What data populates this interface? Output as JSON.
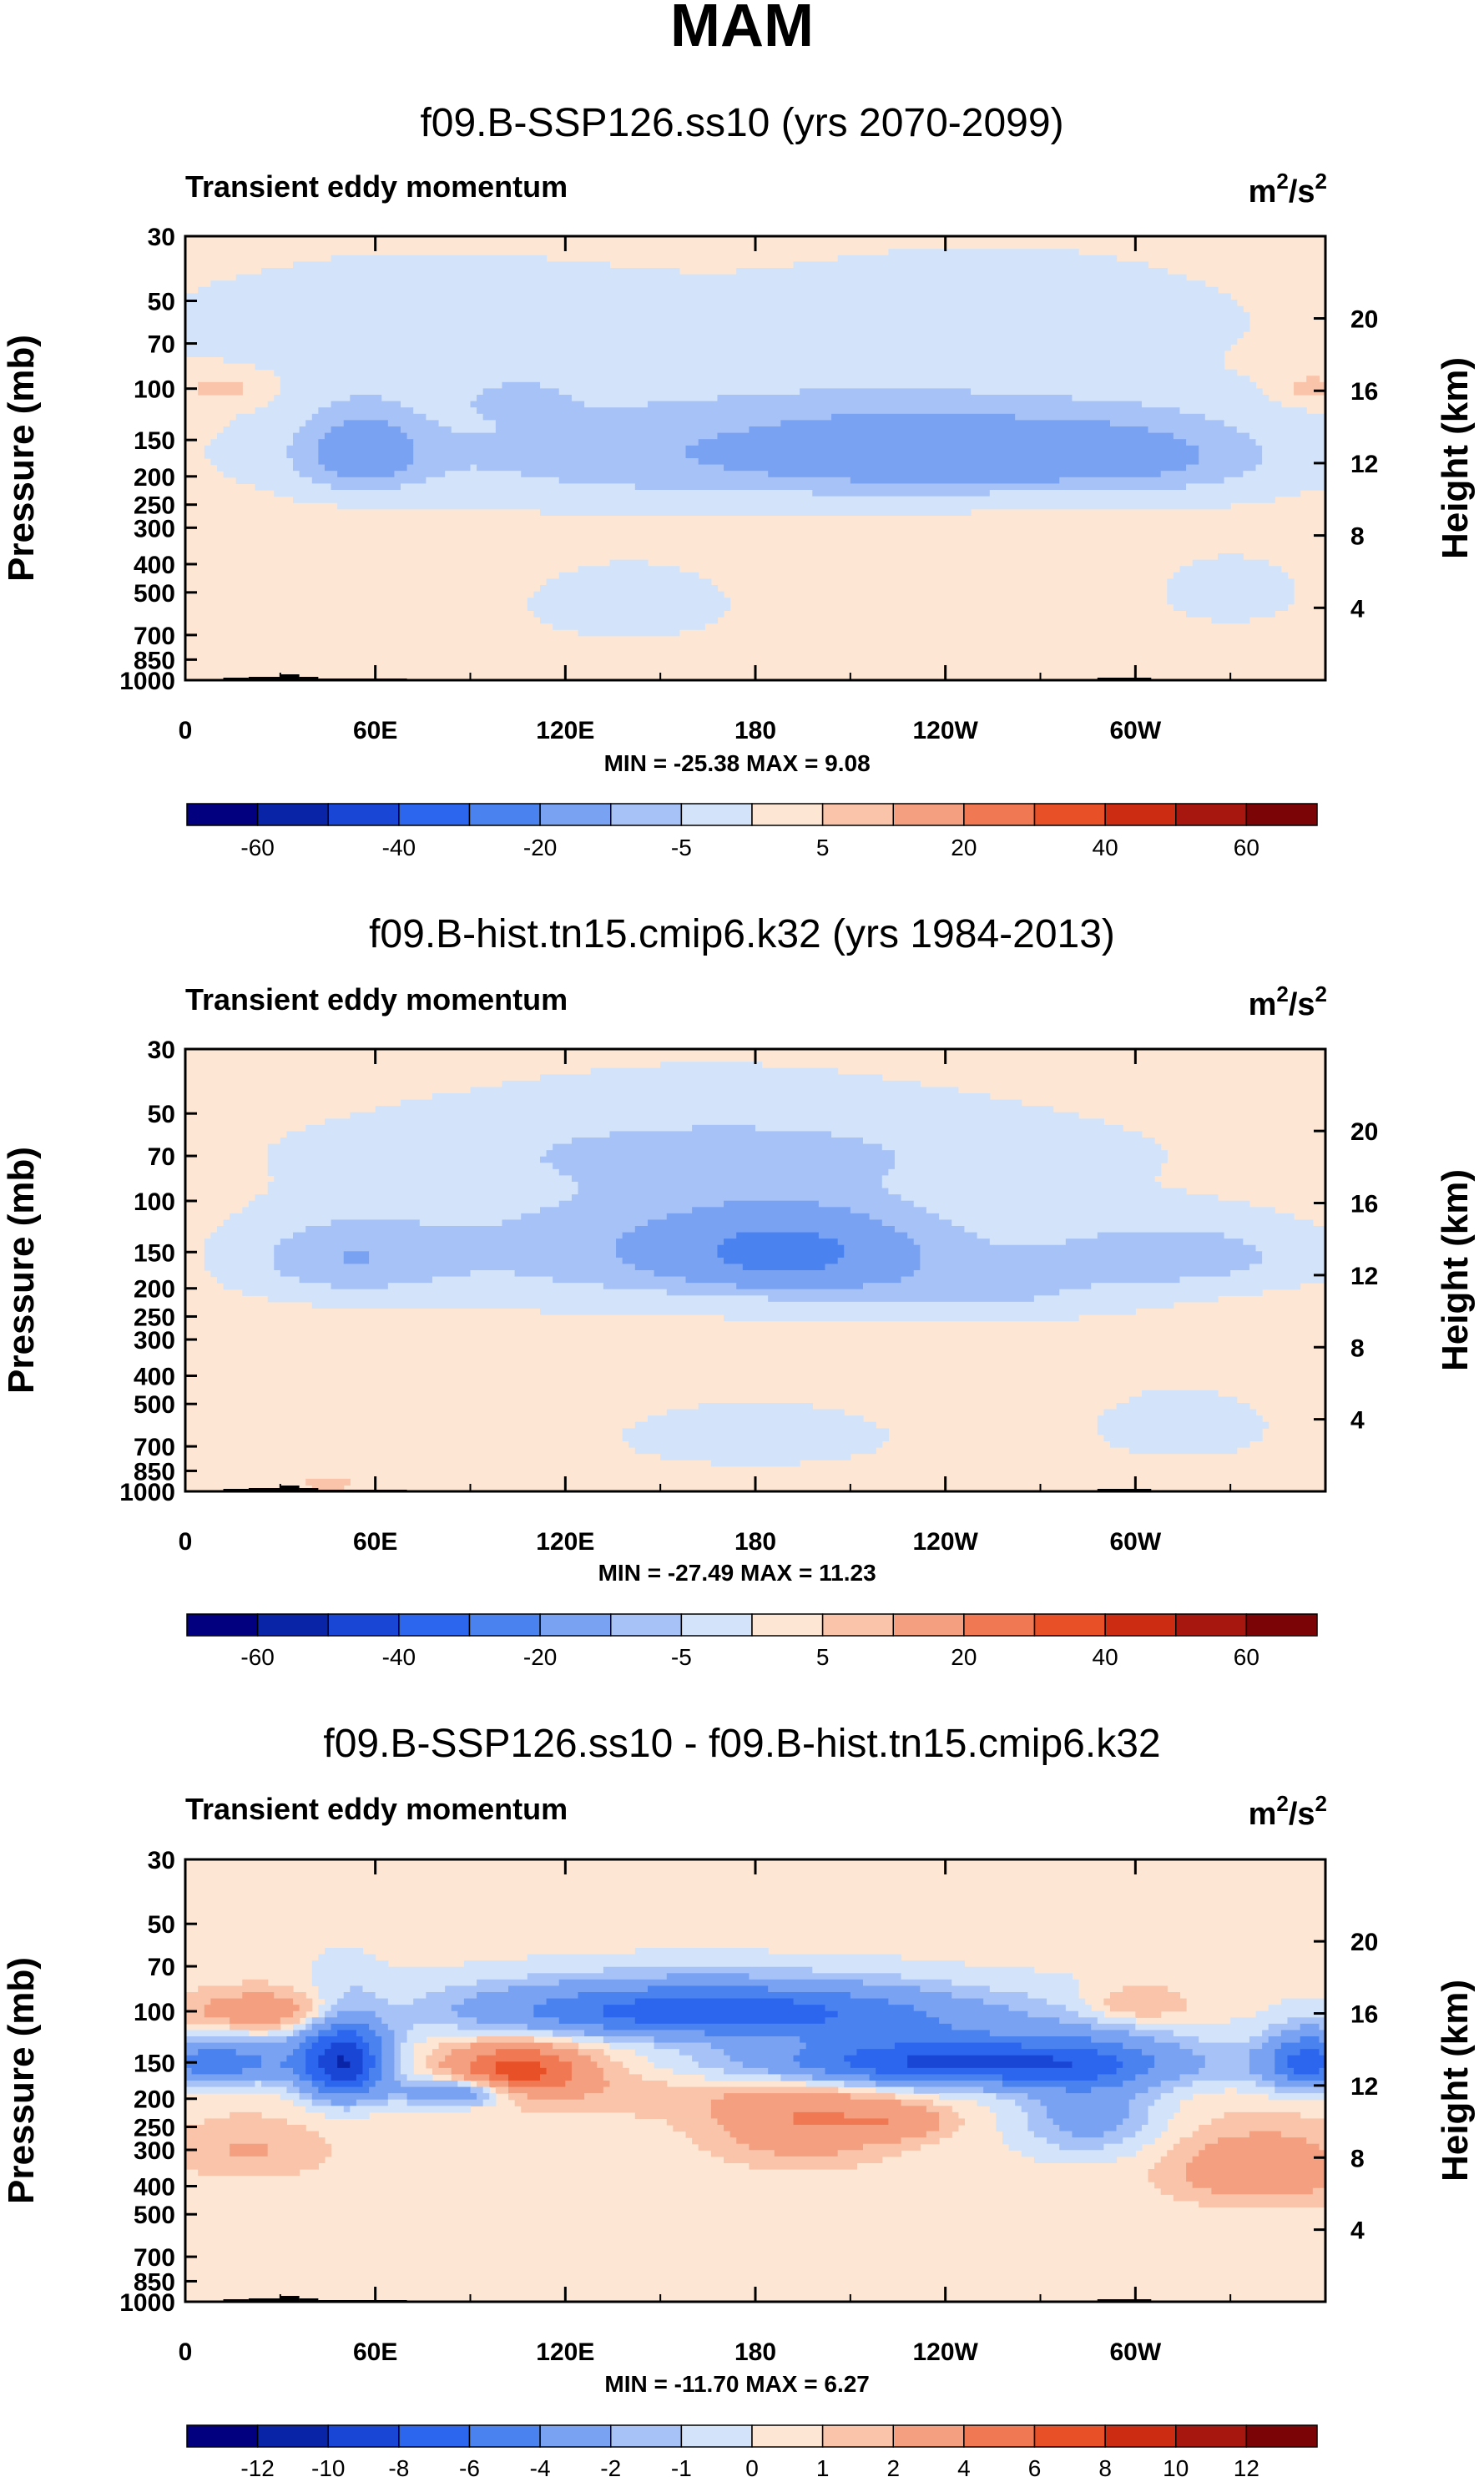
{
  "page_title": "MAM",
  "chart_data": [
    {
      "type": "heatmap",
      "title": "f09.B-SSP126.ss10 (yrs 2070-2099)",
      "subtitle": "Transient eddy momentum",
      "units_base": "m",
      "units_mid": "2",
      "units_slash": "/s",
      "units_exp": "2",
      "ylabel": "Pressure (mb)",
      "y2label": "Height (km)",
      "yticks": [
        "30",
        "50",
        "70",
        "100",
        "150",
        "200",
        "250",
        "300",
        "400",
        "500",
        "700",
        "850",
        "1000"
      ],
      "ytick_values": [
        30,
        50,
        70,
        100,
        150,
        200,
        250,
        300,
        400,
        500,
        700,
        850,
        1000
      ],
      "y2ticks": [
        "20",
        "16",
        "12",
        "8",
        "4"
      ],
      "y2tick_values": [
        20,
        16,
        12,
        8,
        4
      ],
      "xticks": [
        "0",
        "60E",
        "120E",
        "180",
        "120W",
        "60W"
      ],
      "xtick_values": [
        0,
        60,
        120,
        180,
        240,
        300
      ],
      "xlim": [
        0,
        360
      ],
      "ylim": [
        1000,
        30
      ],
      "stats": "MIN = -25.38  MAX =   9.08",
      "min": -25.38,
      "max": 9.08,
      "colorbar_labels": [
        "-60",
        "-40",
        "-20",
        "-5",
        "5",
        "20",
        "40",
        "60"
      ],
      "colorbar_label_boxes": [
        1,
        3,
        5,
        7,
        9,
        11,
        13,
        15
      ],
      "blobs": [
        {
          "cx": 185,
          "cy": 165,
          "sx": 95,
          "sy": 55,
          "v": -10
        },
        {
          "cx": 55,
          "cy": 165,
          "sx": 14,
          "sy": 38,
          "v": -12
        },
        {
          "cx": 105,
          "cy": 110,
          "sx": 10,
          "sy": 10,
          "v": -6
        },
        {
          "cx": 235,
          "cy": 165,
          "sx": 35,
          "sy": 35,
          "v": -8
        },
        {
          "cx": 300,
          "cy": 170,
          "sx": 30,
          "sy": 38,
          "v": -8
        },
        {
          "cx": 70,
          "cy": 60,
          "sx": 60,
          "sy": 18,
          "v": -4
        },
        {
          "cx": 260,
          "cy": 55,
          "sx": 50,
          "sy": 15,
          "v": -4
        },
        {
          "cx": 140,
          "cy": 550,
          "sx": 30,
          "sy": 150,
          "v": -3
        },
        {
          "cx": 330,
          "cy": 500,
          "sx": 20,
          "sy": 120,
          "v": -3
        },
        {
          "cx": 12,
          "cy": 100,
          "sx": 8,
          "sy": 8,
          "v": 6
        },
        {
          "cx": 355,
          "cy": 100,
          "sx": 6,
          "sy": 8,
          "v": 6
        }
      ]
    },
    {
      "type": "heatmap",
      "title": "f09.B-hist.tn15.cmip6.k32 (yrs 1984-2013)",
      "subtitle": "Transient eddy momentum",
      "units_base": "m",
      "units_mid": "2",
      "units_slash": "/s",
      "units_exp": "2",
      "ylabel": "Pressure (mb)",
      "y2label": "Height (km)",
      "yticks": [
        "30",
        "50",
        "70",
        "100",
        "150",
        "200",
        "250",
        "300",
        "400",
        "500",
        "700",
        "850",
        "1000"
      ],
      "ytick_values": [
        30,
        50,
        70,
        100,
        150,
        200,
        250,
        300,
        400,
        500,
        700,
        850,
        1000
      ],
      "y2ticks": [
        "20",
        "16",
        "12",
        "8",
        "4"
      ],
      "y2tick_values": [
        20,
        16,
        12,
        8,
        4
      ],
      "xticks": [
        "0",
        "60E",
        "120E",
        "180",
        "120W",
        "60W"
      ],
      "xtick_values": [
        0,
        60,
        120,
        180,
        240,
        300
      ],
      "xlim": [
        0,
        360
      ],
      "ylim": [
        1000,
        30
      ],
      "stats": "MIN = -27.49  MAX = 11.23",
      "min": -27.49,
      "max": 11.23,
      "colorbar_labels": [
        "-60",
        "-40",
        "-20",
        "-5",
        "5",
        "20",
        "40",
        "60"
      ],
      "colorbar_label_boxes": [
        1,
        3,
        5,
        7,
        9,
        11,
        13,
        15
      ],
      "blobs": [
        {
          "cx": 165,
          "cy": 145,
          "sx": 70,
          "sy": 55,
          "v": -10
        },
        {
          "cx": 190,
          "cy": 150,
          "sx": 25,
          "sy": 30,
          "v": -14
        },
        {
          "cx": 50,
          "cy": 160,
          "sx": 22,
          "sy": 35,
          "v": -8
        },
        {
          "cx": 315,
          "cy": 155,
          "sx": 30,
          "sy": 30,
          "v": -8
        },
        {
          "cx": 250,
          "cy": 210,
          "sx": 35,
          "sy": 30,
          "v": -5
        },
        {
          "cx": 170,
          "cy": 65,
          "sx": 90,
          "sy": 15,
          "v": -4
        },
        {
          "cx": 180,
          "cy": 650,
          "sx": 40,
          "sy": 150,
          "v": -3
        },
        {
          "cx": 315,
          "cy": 600,
          "sx": 25,
          "sy": 150,
          "v": -3
        },
        {
          "cx": 45,
          "cy": 940,
          "sx": 6,
          "sy": 40,
          "v": 6
        }
      ]
    },
    {
      "type": "heatmap",
      "title": "f09.B-SSP126.ss10 - f09.B-hist.tn15.cmip6.k32",
      "subtitle": "Transient eddy momentum",
      "units_base": "m",
      "units_mid": "2",
      "units_slash": "/s",
      "units_exp": "2",
      "ylabel": "Pressure (mb)",
      "y2label": "Height (km)",
      "yticks": [
        "30",
        "50",
        "70",
        "100",
        "150",
        "200",
        "250",
        "300",
        "400",
        "500",
        "700",
        "850",
        "1000"
      ],
      "ytick_values": [
        30,
        50,
        70,
        100,
        150,
        200,
        250,
        300,
        400,
        500,
        700,
        850,
        1000
      ],
      "y2ticks": [
        "20",
        "16",
        "12",
        "8",
        "4"
      ],
      "y2tick_values": [
        20,
        16,
        12,
        8,
        4
      ],
      "xticks": [
        "0",
        "60E",
        "120E",
        "180",
        "120W",
        "60W"
      ],
      "xtick_values": [
        0,
        60,
        120,
        180,
        240,
        300
      ],
      "xlim": [
        0,
        360
      ],
      "ylim": [
        1000,
        30
      ],
      "stats": "MIN = -11.70  MAX =   6.27",
      "min": -11.7,
      "max": 6.27,
      "colorbar_labels": [
        "-12",
        "-10",
        "-8",
        "-6",
        "-4",
        "-2",
        "-1",
        "0",
        "1",
        "2",
        "4",
        "6",
        "8",
        "10",
        "12"
      ],
      "colorbar_label_boxes": [
        1,
        2,
        3,
        4,
        5,
        6,
        7,
        8,
        9,
        10,
        11,
        12,
        13,
        14,
        15
      ],
      "blobs": [
        {
          "cx": 165,
          "cy": 100,
          "sx": 55,
          "sy": 16,
          "v": -7
        },
        {
          "cx": 240,
          "cy": 150,
          "sx": 50,
          "sy": 22,
          "v": -8
        },
        {
          "cx": 50,
          "cy": 150,
          "sx": 10,
          "sy": 35,
          "v": -9
        },
        {
          "cx": 10,
          "cy": 150,
          "sx": 18,
          "sy": 18,
          "v": -5
        },
        {
          "cx": 355,
          "cy": 150,
          "sx": 10,
          "sy": 25,
          "v": -6
        },
        {
          "cx": 85,
          "cy": 190,
          "sx": 12,
          "sy": 15,
          "v": -5
        },
        {
          "cx": 285,
          "cy": 220,
          "sx": 15,
          "sy": 60,
          "v": -3
        },
        {
          "cx": 30,
          "cy": 100,
          "sx": 22,
          "sy": 12,
          "v": 3
        },
        {
          "cx": 105,
          "cy": 160,
          "sx": 14,
          "sy": 22,
          "v": 5
        },
        {
          "cx": 195,
          "cy": 240,
          "sx": 20,
          "sy": 60,
          "v": 3
        },
        {
          "cx": 225,
          "cy": 240,
          "sx": 12,
          "sy": 25,
          "v": 2
        },
        {
          "cx": 340,
          "cy": 350,
          "sx": 20,
          "sy": 70,
          "v": 3
        },
        {
          "cx": 130,
          "cy": 170,
          "sx": 45,
          "sy": 40,
          "v": 1.3
        },
        {
          "cx": 300,
          "cy": 95,
          "sx": 12,
          "sy": 10,
          "v": 2
        },
        {
          "cx": 20,
          "cy": 300,
          "sx": 18,
          "sy": 50,
          "v": 1.5
        }
      ]
    }
  ],
  "colors": {
    "scale": [
      "#03007f",
      "#0a24a8",
      "#1a46d6",
      "#2c66ee",
      "#4a82f0",
      "#7aa2f2",
      "#a7c2f6",
      "#d3e4fa",
      "#fde7d4",
      "#f9c4aa",
      "#f4a080",
      "#f07852",
      "#e85028",
      "#cc2c12",
      "#a81610",
      "#7a0406"
    ],
    "background": "#ffffff",
    "terrain": "#000000"
  }
}
